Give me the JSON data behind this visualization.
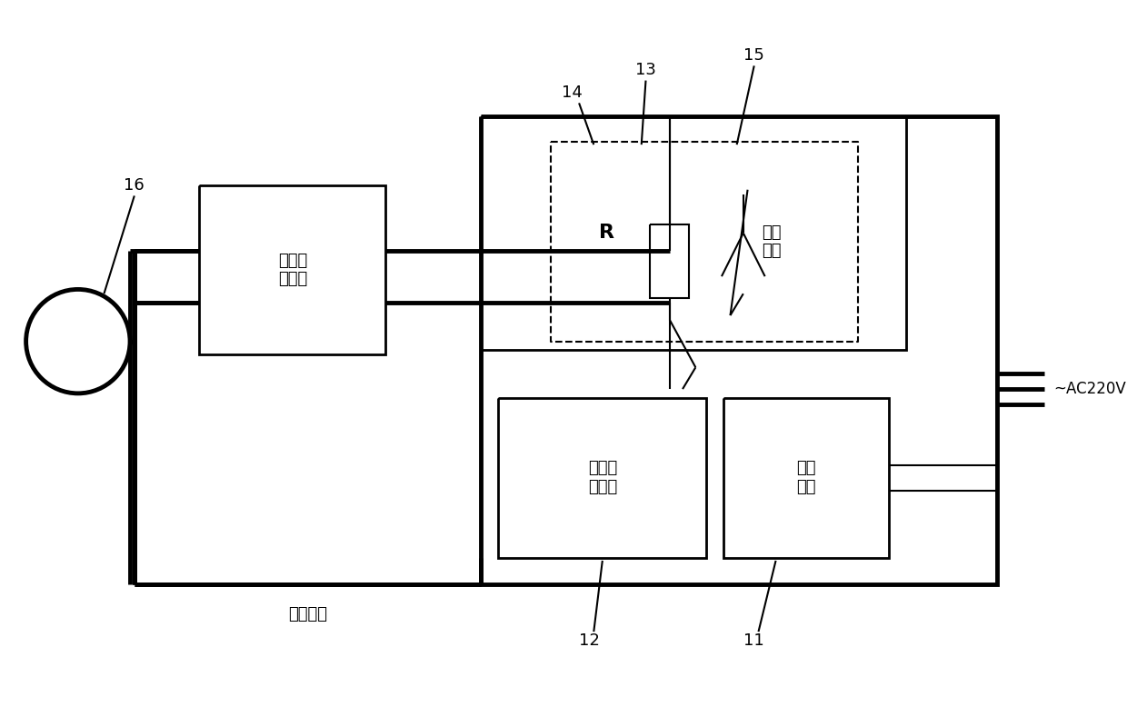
{
  "bg_color": "#ffffff",
  "line_color": "#000000",
  "fig_width": 12.4,
  "fig_height": 7.78,
  "labels": {
    "label_16": "16",
    "label_14": "14",
    "label_13": "13",
    "label_15": "15",
    "label_12": "12",
    "label_11": "11",
    "label_ac": "~AC220V",
    "label_zero": "零序电流",
    "box_kaikou": "开口三\n角回路",
    "box_xiao": "消谐\n模块",
    "box_harmonic": "谐振判\n断模块",
    "box_power": "电源\n模块",
    "label_R": "R"
  }
}
